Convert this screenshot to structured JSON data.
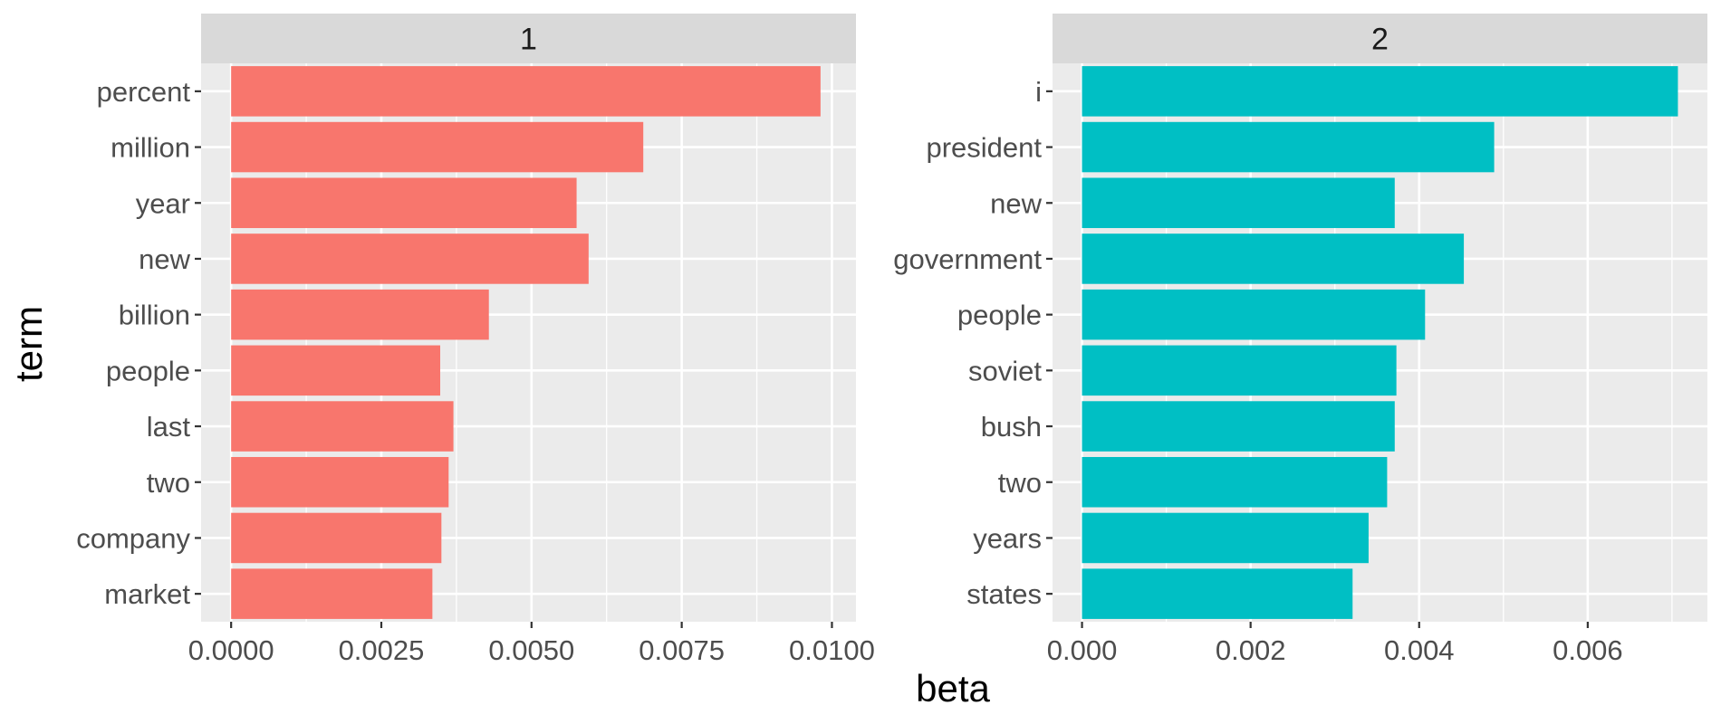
{
  "chart_data": {
    "type": "bar",
    "orientation": "horizontal",
    "xlabel": "beta",
    "ylabel": "term",
    "grid": true,
    "panels": [
      {
        "strip_label": "1",
        "color": "#F8766D",
        "terms": [
          "percent",
          "million",
          "year",
          "new",
          "billion",
          "people",
          "last",
          "two",
          "company",
          "market"
        ],
        "values": [
          0.00981,
          0.00686,
          0.00575,
          0.00595,
          0.00429,
          0.00348,
          0.0037,
          0.00362,
          0.0035,
          0.00335
        ],
        "xlim": [
          -0.0005,
          0.0104
        ],
        "xticks": [
          0.0,
          0.0025,
          0.005,
          0.0075,
          0.01
        ],
        "xtick_labels": [
          "0.0000",
          "0.0025",
          "0.0050",
          "0.0075",
          "0.0100"
        ]
      },
      {
        "strip_label": "2",
        "color": "#00BFC4",
        "terms": [
          "i",
          "president",
          "new",
          "government",
          "people",
          "soviet",
          "bush",
          "two",
          "years",
          "states"
        ],
        "values": [
          0.00707,
          0.00489,
          0.00371,
          0.00453,
          0.00407,
          0.00373,
          0.00371,
          0.00362,
          0.0034,
          0.00321
        ],
        "xlim": [
          -0.00035,
          0.00742
        ],
        "xticks": [
          0.0,
          0.002,
          0.004,
          0.006
        ],
        "xtick_labels": [
          "0.000",
          "0.002",
          "0.004",
          "0.006"
        ]
      }
    ]
  }
}
